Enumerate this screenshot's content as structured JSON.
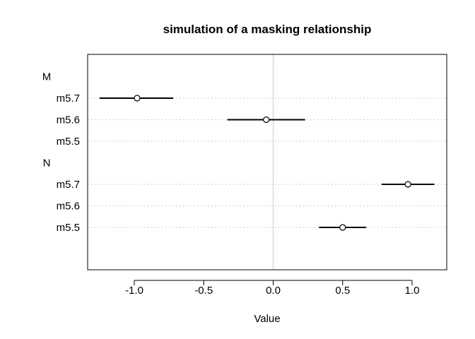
{
  "chart_data": {
    "type": "scatter",
    "title": "simulation of a masking relationship",
    "xlabel": "Value",
    "xlim": [
      -1.35,
      1.25
    ],
    "x_ticks": [
      -1.0,
      -0.5,
      0.0,
      0.5,
      1.0
    ],
    "x_tick_labels": [
      "-1.0",
      "-0.5",
      "0.0",
      "0.5",
      "1.0"
    ],
    "zero_line": true,
    "groups": [
      {
        "name": "M",
        "rows": [
          {
            "label": "m5.7",
            "mean": -0.98,
            "lower": -1.25,
            "upper": -0.72
          },
          {
            "label": "m5.6",
            "mean": -0.05,
            "lower": -0.33,
            "upper": 0.23
          },
          {
            "label": "m5.5",
            "mean": null,
            "lower": null,
            "upper": null
          }
        ]
      },
      {
        "name": "N",
        "rows": [
          {
            "label": "m5.7",
            "mean": 0.97,
            "lower": 0.78,
            "upper": 1.16
          },
          {
            "label": "m5.6",
            "mean": null,
            "lower": null,
            "upper": null
          },
          {
            "label": "m5.5",
            "mean": 0.5,
            "lower": 0.33,
            "upper": 0.67
          }
        ]
      }
    ],
    "colors": {
      "interval": "#000000",
      "gridline": "#bdbdbd",
      "zero_line": "#d9d9d9"
    }
  }
}
